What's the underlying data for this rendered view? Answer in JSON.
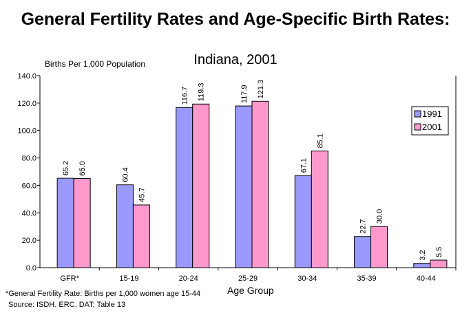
{
  "chart_data": {
    "type": "bar",
    "title": "General Fertility Rates and Age-Specific Birth Rates:",
    "subtitle": "Indiana, 2001",
    "ylabel": "Births Per 1,000 Population",
    "xlabel": "Age Group",
    "categories": [
      "GFR*",
      "15-19",
      "20-24",
      "25-29",
      "30-34",
      "35-39",
      "40-44"
    ],
    "series": [
      {
        "name": "1991",
        "color": "#9999ff",
        "values": [
          65.2,
          60.4,
          116.7,
          117.9,
          67.1,
          22.7,
          3.2
        ]
      },
      {
        "name": "2001",
        "color": "#ff99cc",
        "values": [
          65.0,
          45.7,
          119.3,
          121.3,
          85.1,
          30.0,
          5.5
        ]
      }
    ],
    "ylim": [
      0,
      140
    ],
    "yticks": [
      "0.0",
      "20.0",
      "40.0",
      "60.0",
      "80.0",
      "100.0",
      "120.0",
      "140.0"
    ],
    "grid": false,
    "legend": "right"
  },
  "footnotes": [
    "*General Fertility Rate:  Births per 1,000 women age 15-44",
    "Source:  ISDH. ERC, DAT; Table 13"
  ]
}
